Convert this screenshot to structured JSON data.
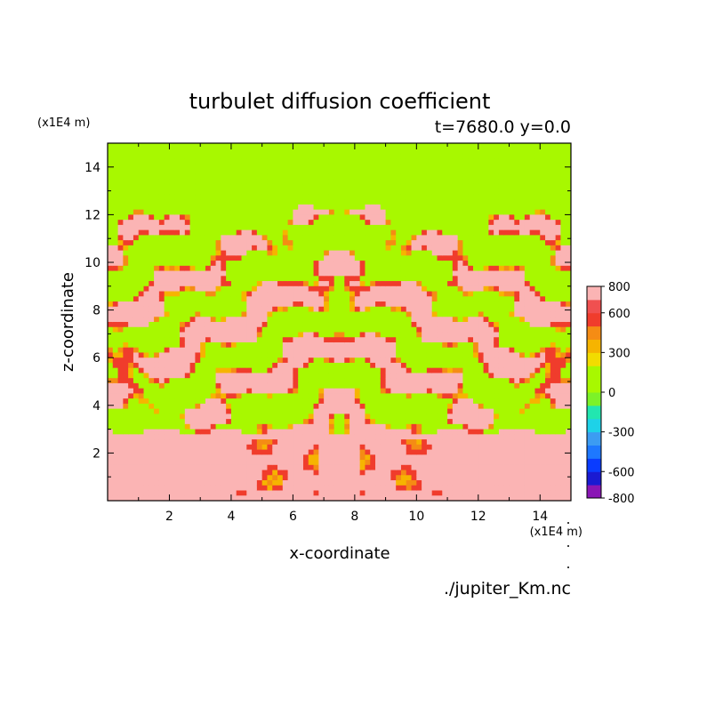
{
  "chart_data": {
    "type": "heatmap",
    "title": "turbulet diffusion coefficient",
    "subtitle": "t=7680.0 y=0.0",
    "xlabel": "x-coordinate",
    "ylabel": "z-coordinate",
    "x_unit": "(x1E4 m)",
    "y_unit": "(x1E4 m)",
    "source": "./jupiter_Km.nc",
    "xlim": [
      0,
      15
    ],
    "ylim": [
      0,
      15
    ],
    "x_ticks": [
      2,
      4,
      6,
      8,
      10,
      12,
      14
    ],
    "y_ticks": [
      2,
      4,
      6,
      8,
      10,
      12,
      14
    ],
    "colorbar": {
      "min": -800,
      "max": 800,
      "tick_labels": [
        800,
        600,
        300,
        0,
        -300,
        -600,
        -800
      ],
      "levels": [
        -800,
        -700,
        -600,
        -500,
        -400,
        -300,
        -200,
        -100,
        0,
        100,
        200,
        300,
        400,
        500,
        600,
        700,
        800
      ],
      "colors": [
        "#8a16b5",
        "#1a1ad2",
        "#0a3cff",
        "#1e78ff",
        "#3c9cf2",
        "#1ed2e8",
        "#22e6b0",
        "#7cf228",
        "#a8f800",
        "#a8f800",
        "#f2dc00",
        "#f6b400",
        "#f58c14",
        "#f03c2c",
        "#f05050",
        "#fbb4b4"
      ]
    },
    "bands": [
      {
        "z_from": 12.0,
        "z_to": 15.0,
        "value": 0,
        "description": "uniform green layer"
      },
      {
        "z_from": 3.0,
        "z_to": 12.0,
        "value": "mixed 0-800",
        "description": "turbulent mixing layer"
      },
      {
        "z_from": 0.0,
        "z_to": 3.0,
        "value": 800,
        "description": "mostly pink layer"
      }
    ],
    "grid": false,
    "legend": "colorbar-right"
  }
}
